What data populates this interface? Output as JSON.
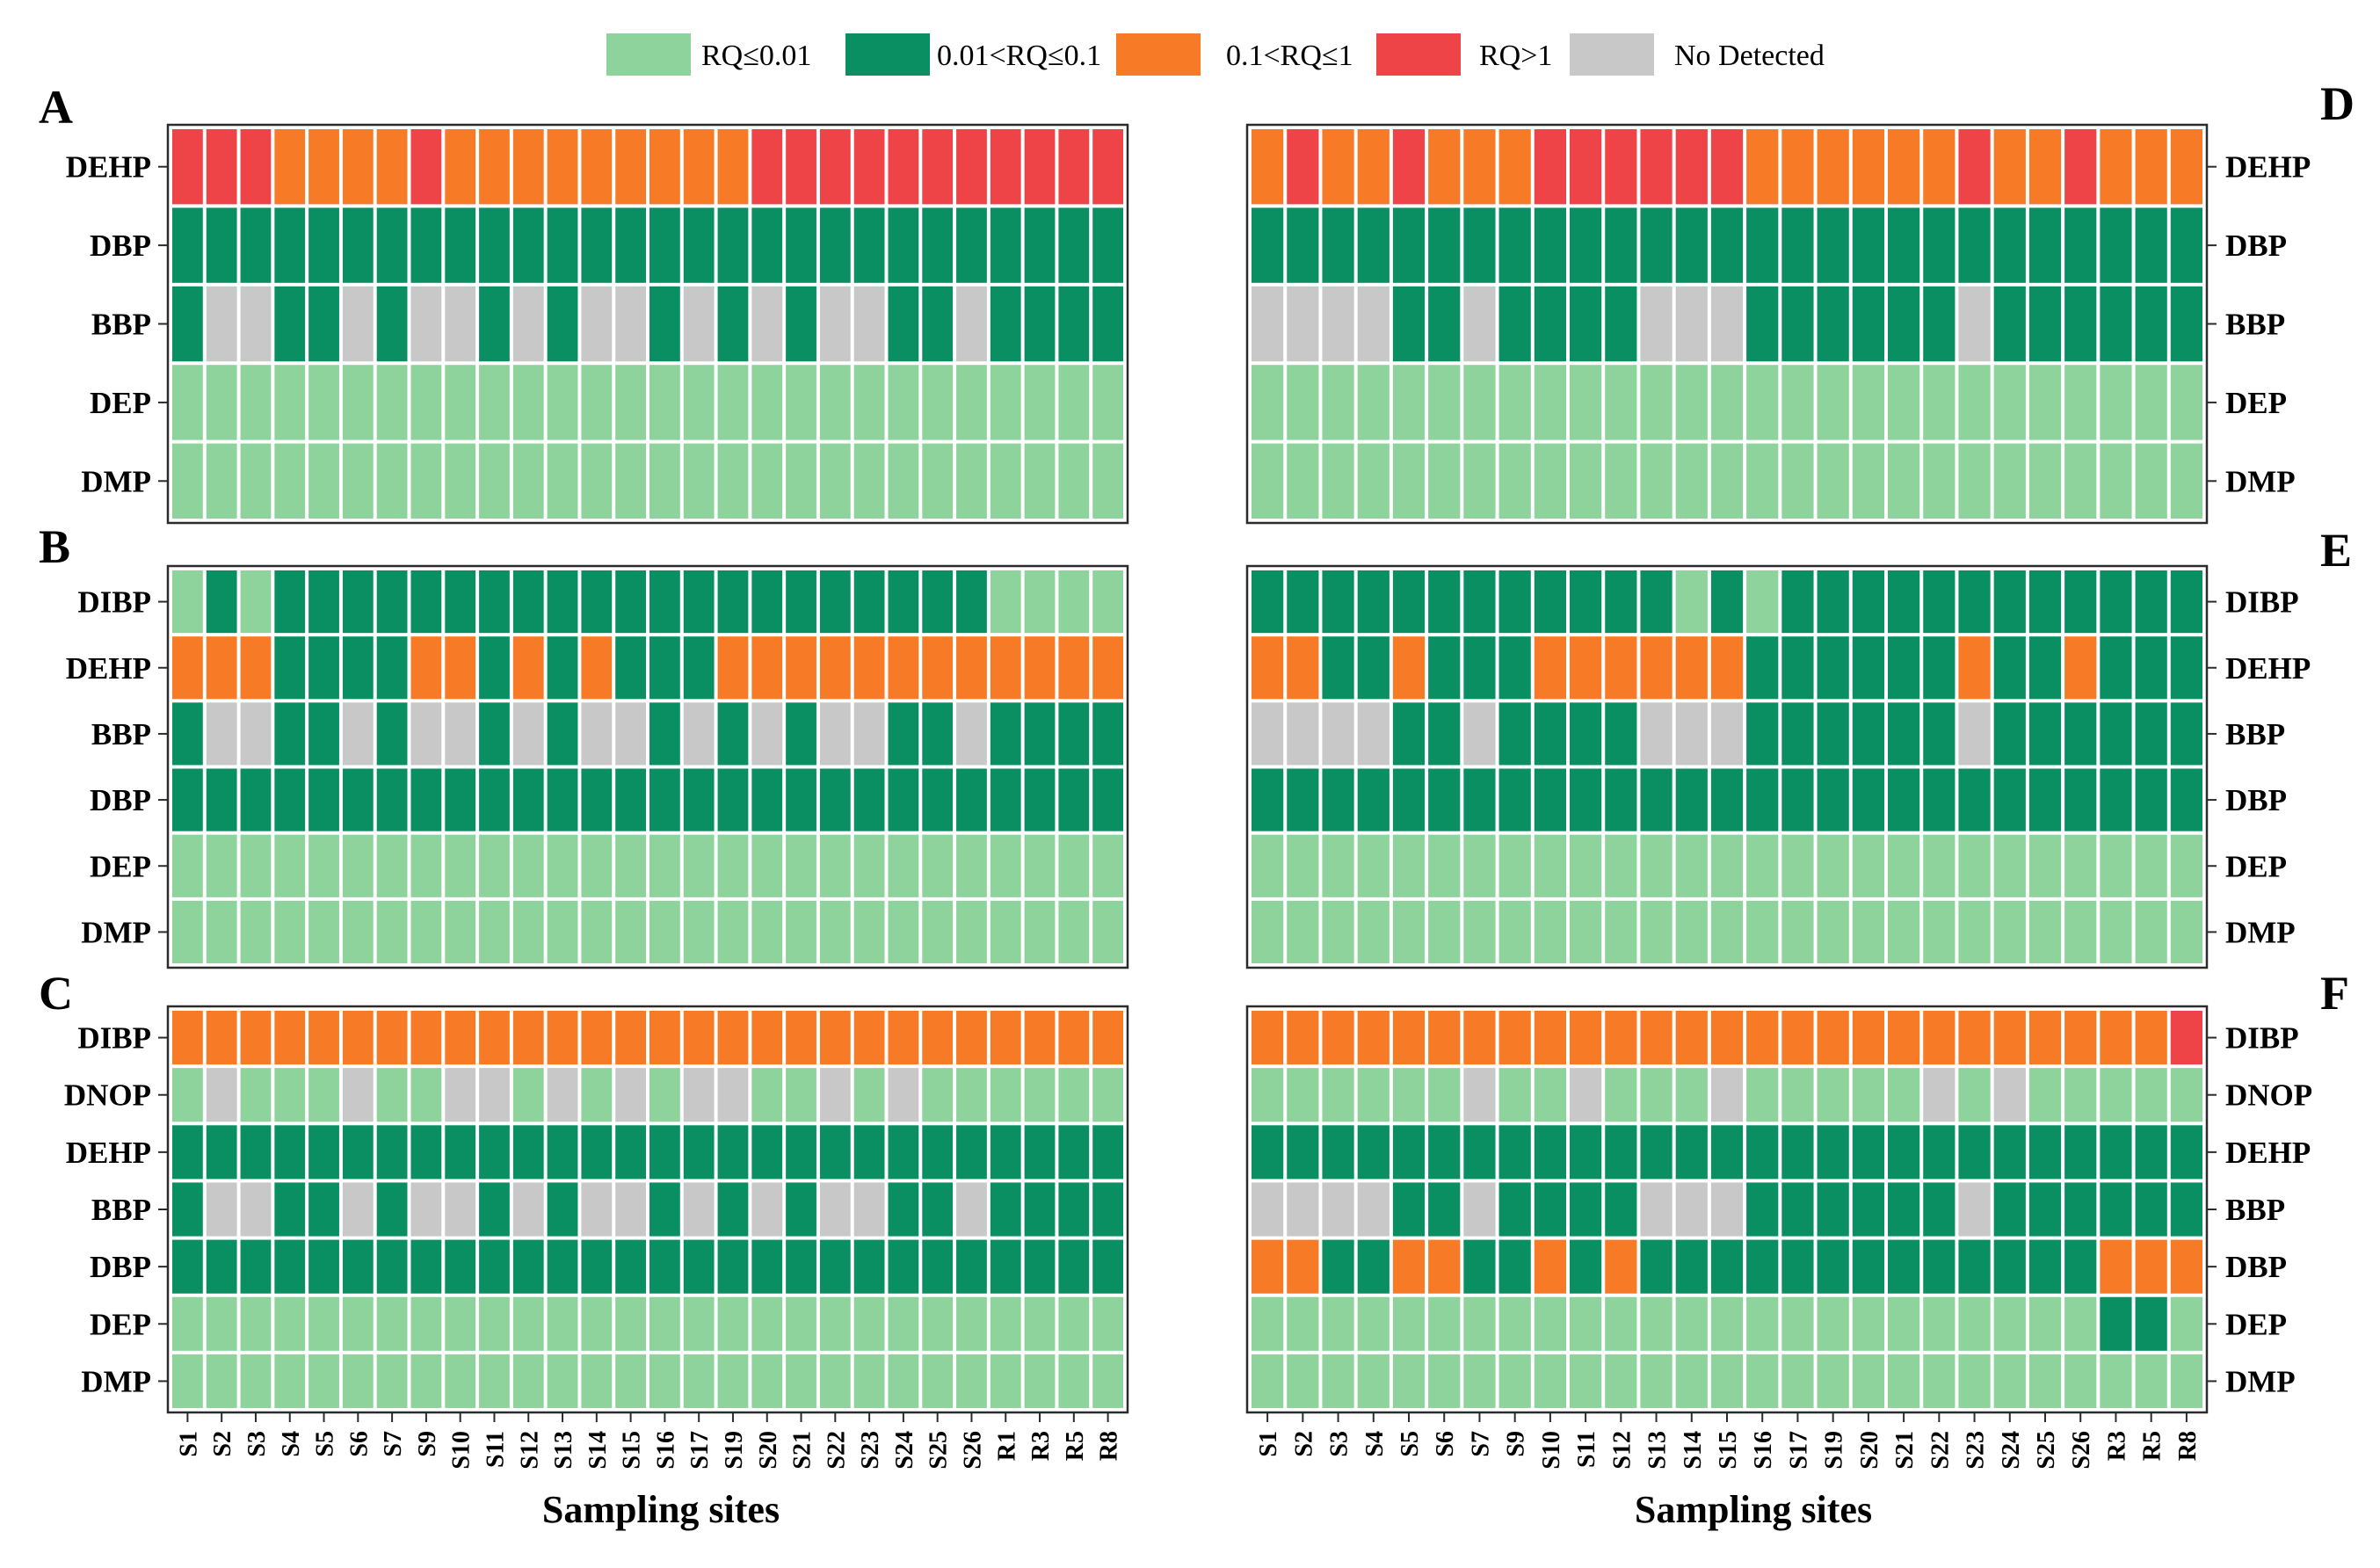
{
  "legend": [
    {
      "key": "L",
      "label": "RQ≤0.01"
    },
    {
      "key": "M",
      "label": "0.01<RQ≤0.1"
    },
    {
      "key": "H",
      "label": "0.1<RQ≤1"
    },
    {
      "key": "X",
      "label": "RQ>1"
    },
    {
      "key": "N",
      "label": "No Detected"
    }
  ],
  "colors": {
    "L": "#8fd39c",
    "M": "#0a8f63",
    "H": "#f77a26",
    "X": "#ee4347",
    "N": "#c8c8c8"
  },
  "xlabel": "Sampling sites",
  "chart_data": [
    {
      "type": "heatmap",
      "panel": "A",
      "sites": [
        "S1",
        "S2",
        "S3",
        "S4",
        "S5",
        "S6",
        "S7",
        "S9",
        "S10",
        "S11",
        "S12",
        "S13",
        "S14",
        "S15",
        "S16",
        "S17",
        "S19",
        "S20",
        "S21",
        "S22",
        "S23",
        "S24",
        "S25",
        "S26",
        "R1",
        "R3",
        "R5",
        "R8"
      ],
      "rows": [
        {
          "name": "DEHP",
          "values": "XXXHHHHXHHHHHHHHHXXXXXXXXXXX"
        },
        {
          "name": "DBP",
          "values": "MMMMMMMMMMMMMMMMMMMMMMMMMMMM"
        },
        {
          "name": "BBP",
          "values": "MNNMMNMNNMNMNNMNMNMNNMMNMMMM"
        },
        {
          "name": "DEP",
          "values": "LLLLLLLLLLLLLLLLLLLLLLLLLLLL"
        },
        {
          "name": "DMP",
          "values": "LLLLLLLLLLLLLLLLLLLLLLLLLLLL"
        }
      ]
    },
    {
      "type": "heatmap",
      "panel": "B",
      "sites": [
        "S1",
        "S2",
        "S3",
        "S4",
        "S5",
        "S6",
        "S7",
        "S9",
        "S10",
        "S11",
        "S12",
        "S13",
        "S14",
        "S15",
        "S16",
        "S17",
        "S19",
        "S20",
        "S21",
        "S22",
        "S23",
        "S24",
        "S25",
        "S26",
        "R1",
        "R3",
        "R5",
        "R8"
      ],
      "rows": [
        {
          "name": "DIBP",
          "values": "LMLMMMMMMMMMMMMMMMMMMMMMLLLL"
        },
        {
          "name": "DEHP",
          "values": "HHHMMMMHHMHMHMMMHHHHHHHHHHHH"
        },
        {
          "name": "BBP",
          "values": "MNNMMNMNNMNMNNMNMNMNNMMNMMMM"
        },
        {
          "name": "DBP",
          "values": "MMMMMMMMMMMMMMMMMMMMMMMMMMMM"
        },
        {
          "name": "DEP",
          "values": "LLLLLLLLLLLLLLLLLLLLLLLLLLLL"
        },
        {
          "name": "DMP",
          "values": "LLLLLLLLLLLLLLLLLLLLLLLLLLLL"
        }
      ]
    },
    {
      "type": "heatmap",
      "panel": "C",
      "sites": [
        "S1",
        "S2",
        "S3",
        "S4",
        "S5",
        "S6",
        "S7",
        "S9",
        "S10",
        "S11",
        "S12",
        "S13",
        "S14",
        "S15",
        "S16",
        "S17",
        "S19",
        "S20",
        "S21",
        "S22",
        "S23",
        "S24",
        "S25",
        "S26",
        "R1",
        "R3",
        "R5",
        "R8"
      ],
      "rows": [
        {
          "name": "DIBP",
          "values": "HHHHHHHHHHHHHHHHHHHHHHHHHHHH"
        },
        {
          "name": "DNOP",
          "values": "LNLLLNLLNNLNLNLNNLLNLNLLLLLL"
        },
        {
          "name": "DEHP",
          "values": "MMMMMMMMMMMMMMMMMMMMMMMMMMMM"
        },
        {
          "name": "BBP",
          "values": "MNNMMNMNNMNMNNMNMNMNNMMNMMMM"
        },
        {
          "name": "DBP",
          "values": "MMMMMMMMMMMMMMMMMMMMMMMMMMMM"
        },
        {
          "name": "DEP",
          "values": "LLLLLLLLLLLLLLLLLLLLLLLLLLLL"
        },
        {
          "name": "DMP",
          "values": "LLLLLLLLLLLLLLLLLLLLLLLLLLLL"
        }
      ]
    },
    {
      "type": "heatmap",
      "panel": "D",
      "sites": [
        "S1",
        "S2",
        "S3",
        "S4",
        "S5",
        "S6",
        "S7",
        "S9",
        "S10",
        "S11",
        "S12",
        "S13",
        "S14",
        "S15",
        "S16",
        "S17",
        "S19",
        "S20",
        "S21",
        "S22",
        "S23",
        "S24",
        "S25",
        "S26",
        "R3",
        "R5",
        "R8"
      ],
      "rows": [
        {
          "name": "DEHP",
          "values": "HXHHXHHHXXXXXXHHHHHHXHHXHHH"
        },
        {
          "name": "DBP",
          "values": "MMMMMMMMMMMMMMMMMMMMMMMMMMM"
        },
        {
          "name": "BBP",
          "values": "NNNNMMNMMMMNNNMMMMMMNMMMMMM"
        },
        {
          "name": "DEP",
          "values": "LLLLLLLLLLLLLLLLLLLLLLLLLLL"
        },
        {
          "name": "DMP",
          "values": "LLLLLLLLLLLLLLLLLLLLLLLLLLL"
        }
      ]
    },
    {
      "type": "heatmap",
      "panel": "E",
      "sites": [
        "S1",
        "S2",
        "S3",
        "S4",
        "S5",
        "S6",
        "S7",
        "S9",
        "S10",
        "S11",
        "S12",
        "S13",
        "S14",
        "S15",
        "S16",
        "S17",
        "S19",
        "S20",
        "S21",
        "S22",
        "S23",
        "S24",
        "S25",
        "S26",
        "R3",
        "R5",
        "R8"
      ],
      "rows": [
        {
          "name": "DIBP",
          "values": "MMMMMMMMMMMMLMLMMMMMMMMMMMM"
        },
        {
          "name": "DEHP",
          "values": "HHMMHMMMHHHHHHMMMMMMHMMHMMM"
        },
        {
          "name": "BBP",
          "values": "NNNNMMNMMMMNNNMMMMMMNMMMMMM"
        },
        {
          "name": "DBP",
          "values": "MMMMMMMMMMMMMMMMMMMMMMMMMMM"
        },
        {
          "name": "DEP",
          "values": "LLLLLLLLLLLLLLLLLLLLLLLLLLL"
        },
        {
          "name": "DMP",
          "values": "LLLLLLLLLLLLLLLLLLLLLLLLLLL"
        }
      ]
    },
    {
      "type": "heatmap",
      "panel": "F",
      "sites": [
        "S1",
        "S2",
        "S3",
        "S4",
        "S5",
        "S6",
        "S7",
        "S9",
        "S10",
        "S11",
        "S12",
        "S13",
        "S14",
        "S15",
        "S16",
        "S17",
        "S19",
        "S20",
        "S21",
        "S22",
        "S23",
        "S24",
        "S25",
        "S26",
        "R3",
        "R5",
        "R8"
      ],
      "rows": [
        {
          "name": "DIBP",
          "values": "HHHHHHHHHHHHHHHHHHHHHHHHHHX"
        },
        {
          "name": "DNOP",
          "values": "LLLLLLNLLNLLLNLLLLLNLNLLLLL"
        },
        {
          "name": "DEHP",
          "values": "MMMMMMMMMMMMMMMMMMMMMMMMMMM"
        },
        {
          "name": "BBP",
          "values": "NNNNMMNMMMMNNNMMMMMMNMMMMMM"
        },
        {
          "name": "DBP",
          "values": "HHMMHHMMHMHMMMMMMMMMMMMMHHH"
        },
        {
          "name": "DEP",
          "values": "LLLLLLLLLLLLLLLLLLLLLLLLMML"
        },
        {
          "name": "DMP",
          "values": "LLLLLLLLLLLLLLLLLLLLLLLLLLL"
        }
      ]
    }
  ]
}
